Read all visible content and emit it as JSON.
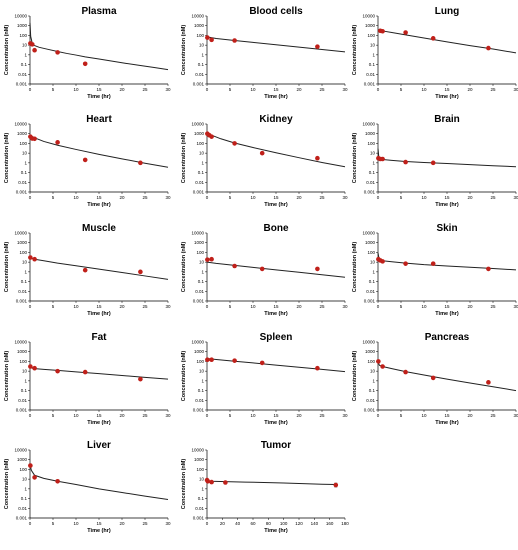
{
  "figure": {
    "colors": {
      "axis": "#000000",
      "model_line": "#222222",
      "observed": "#c0201a",
      "error_bar": "#888888"
    }
  },
  "chart_data": [
    {
      "type": "line",
      "title": "Plasma",
      "xlabel": "Time (hr)",
      "ylabel": "Concentration (nM)",
      "xlim": [
        0,
        30
      ],
      "ylim": [
        0.001,
        10000
      ],
      "ylog": true,
      "xticks": [
        "0",
        "5",
        "10",
        "15",
        "20",
        "25",
        "30"
      ],
      "yticks": [
        "0.001",
        "0.01",
        "0.1",
        "1",
        "10",
        "100",
        "1000",
        "10000"
      ],
      "model": {
        "x": [
          0,
          0.15,
          0.5,
          1,
          2,
          4,
          6,
          8,
          10,
          12,
          15,
          18,
          21,
          24,
          27,
          30
        ],
        "y": [
          2000,
          80,
          15,
          9,
          6,
          3.6,
          2.2,
          1.4,
          0.95,
          0.62,
          0.37,
          0.22,
          0.13,
          0.08,
          0.05,
          0.03
        ]
      },
      "observed": {
        "x": [
          0.08,
          0.5,
          1,
          6,
          12
        ],
        "y": [
          15,
          12,
          3,
          1.8,
          0.12
        ]
      }
    },
    {
      "type": "line",
      "title": "Blood cells",
      "xlabel": "Time (hr)",
      "ylabel": "Concentration (nM)",
      "xlim": [
        0,
        30
      ],
      "ylim": [
        0.001,
        10000
      ],
      "ylog": true,
      "xticks": [
        "0",
        "5",
        "10",
        "15",
        "20",
        "25",
        "30"
      ],
      "yticks": [
        "0.001",
        "0.01",
        "0.1",
        "1",
        "10",
        "100",
        "1000",
        "10000"
      ],
      "model": {
        "x": [
          0,
          2,
          6,
          10,
          15,
          20,
          25,
          30
        ],
        "y": [
          70,
          48,
          30,
          19,
          11,
          6.3,
          3.6,
          2
        ]
      },
      "observed": {
        "x": [
          0.08,
          1,
          6,
          24
        ],
        "y": [
          60,
          35,
          30,
          7
        ]
      }
    },
    {
      "type": "line",
      "title": "Lung",
      "xlabel": "Time (hr)",
      "ylabel": "Concentration (nM)",
      "xlim": [
        0,
        30
      ],
      "ylim": [
        0.001,
        10000
      ],
      "ylog": true,
      "xticks": [
        "0",
        "5",
        "10",
        "15",
        "20",
        "25",
        "30"
      ],
      "yticks": [
        "0.001",
        "0.01",
        "0.1",
        "1",
        "10",
        "100",
        "1000",
        "10000"
      ],
      "model": {
        "x": [
          0,
          1,
          3,
          6,
          10,
          15,
          20,
          25,
          30
        ],
        "y": [
          350,
          290,
          200,
          115,
          55,
          22,
          9,
          4,
          1.6
        ]
      },
      "observed": {
        "x": [
          0.5,
          1,
          6,
          12,
          24
        ],
        "y": [
          300,
          270,
          200,
          50,
          5
        ]
      }
    },
    {
      "type": "line",
      "title": "Heart",
      "xlabel": "Time (hr)",
      "ylabel": "Concentration (nM)",
      "xlim": [
        0,
        30
      ],
      "ylim": [
        0.001,
        10000
      ],
      "ylog": true,
      "xticks": [
        "0",
        "5",
        "10",
        "15",
        "20",
        "25",
        "30"
      ],
      "yticks": [
        "0.001",
        "0.01",
        "0.1",
        "1",
        "10",
        "100",
        "1000",
        "10000"
      ],
      "model": {
        "x": [
          0,
          1,
          3,
          6,
          10,
          15,
          20,
          25,
          30
        ],
        "y": [
          700,
          380,
          160,
          65,
          24,
          7.5,
          2.6,
          0.9,
          0.35
        ]
      },
      "observed": {
        "x": [
          0.08,
          0.5,
          1,
          6,
          12,
          24
        ],
        "y": [
          500,
          320,
          300,
          130,
          2,
          1
        ]
      }
    },
    {
      "type": "line",
      "title": "Kidney",
      "xlabel": "Time (hr)",
      "ylabel": "Concentration (nM)",
      "xlim": [
        0,
        30
      ],
      "ylim": [
        0.001,
        10000
      ],
      "ylog": true,
      "xticks": [
        "0",
        "5",
        "10",
        "15",
        "20",
        "25",
        "30"
      ],
      "yticks": [
        "0.001",
        "0.01",
        "0.1",
        "1",
        "10",
        "100",
        "1000",
        "10000"
      ],
      "model": {
        "x": [
          0,
          1,
          3,
          6,
          10,
          15,
          20,
          25,
          30
        ],
        "y": [
          1200,
          700,
          300,
          110,
          38,
          11,
          3.4,
          1.1,
          0.4
        ]
      },
      "observed": {
        "x": [
          0.08,
          0.5,
          1,
          6,
          12,
          24
        ],
        "y": [
          1000,
          700,
          500,
          100,
          10,
          3
        ]
      }
    },
    {
      "type": "line",
      "title": "Brain",
      "xlabel": "Time (hr)",
      "ylabel": "Concentration (nM)",
      "xlim": [
        0,
        30
      ],
      "ylim": [
        0.001,
        10000
      ],
      "ylog": true,
      "xticks": [
        "0",
        "5",
        "10",
        "15",
        "20",
        "25",
        "30"
      ],
      "yticks": [
        "0.001",
        "0.01",
        "0.1",
        "1",
        "10",
        "100",
        "1000",
        "10000"
      ],
      "model": {
        "x": [
          0,
          0.2,
          0.5,
          1,
          3,
          6,
          10,
          15,
          20,
          25,
          30
        ],
        "y": [
          30,
          3,
          2.4,
          2.2,
          1.8,
          1.4,
          1.1,
          0.85,
          0.65,
          0.5,
          0.4
        ]
      },
      "observed": {
        "x": [
          0.08,
          0.5,
          1,
          6,
          12
        ],
        "y": [
          3,
          2.5,
          2.5,
          1.2,
          1
        ]
      }
    },
    {
      "type": "line",
      "title": "Muscle",
      "xlabel": "Time (hr)",
      "ylabel": "Concentration (nM)",
      "xlim": [
        0,
        30
      ],
      "ylim": [
        0.001,
        10000
      ],
      "ylog": true,
      "xticks": [
        "0",
        "5",
        "10",
        "15",
        "20",
        "25",
        "30"
      ],
      "yticks": [
        "0.001",
        "0.01",
        "0.1",
        "1",
        "10",
        "100",
        "1000",
        "10000"
      ],
      "model": {
        "x": [
          0,
          1,
          3,
          6,
          10,
          15,
          20,
          25,
          30
        ],
        "y": [
          30,
          20,
          14,
          8,
          4.2,
          1.9,
          0.85,
          0.38,
          0.17
        ]
      },
      "observed": {
        "x": [
          0.08,
          1,
          12,
          24
        ],
        "y": [
          30,
          20,
          1.5,
          1
        ]
      }
    },
    {
      "type": "line",
      "title": "Bone",
      "xlabel": "Time (hr)",
      "ylabel": "Concentration (nM)",
      "xlim": [
        0,
        30
      ],
      "ylim": [
        0.001,
        10000
      ],
      "ylog": true,
      "xticks": [
        "0",
        "5",
        "10",
        "15",
        "20",
        "25",
        "30"
      ],
      "yticks": [
        "0.001",
        "0.01",
        "0.1",
        "1",
        "10",
        "100",
        "1000",
        "10000"
      ],
      "model": {
        "x": [
          0,
          2,
          6,
          10,
          15,
          20,
          25,
          30
        ],
        "y": [
          10,
          7.5,
          4.7,
          2.9,
          1.6,
          0.9,
          0.5,
          0.28
        ]
      },
      "observed": {
        "x": [
          0.08,
          1,
          6,
          12,
          24
        ],
        "y": [
          18,
          20,
          4,
          2,
          2
        ]
      }
    },
    {
      "type": "line",
      "title": "Skin",
      "xlabel": "Time (hr)",
      "ylabel": "Concentration (nM)",
      "xlim": [
        0,
        30
      ],
      "ylim": [
        0.001,
        10000
      ],
      "ylog": true,
      "xticks": [
        "0",
        "5",
        "10",
        "15",
        "20",
        "25",
        "30"
      ],
      "yticks": [
        "0.001",
        "0.01",
        "0.1",
        "1",
        "10",
        "100",
        "1000",
        "10000"
      ],
      "model": {
        "x": [
          0,
          0.15,
          0.5,
          1,
          3,
          6,
          10,
          15,
          20,
          25,
          30
        ],
        "y": [
          90,
          35,
          18,
          14,
          11,
          8,
          5.5,
          4,
          3,
          2.2,
          1.6
        ]
      },
      "observed": {
        "x": [
          0.08,
          0.5,
          1,
          6,
          12,
          24
        ],
        "y": [
          20,
          15,
          12,
          7,
          7,
          2
        ]
      }
    },
    {
      "type": "line",
      "title": "Fat",
      "xlabel": "Time (hr)",
      "ylabel": "Concentration (nM)",
      "xlim": [
        0,
        30
      ],
      "ylim": [
        0.001,
        10000
      ],
      "ylog": true,
      "xticks": [
        "0",
        "5",
        "10",
        "15",
        "20",
        "25",
        "30"
      ],
      "yticks": [
        "0.001",
        "0.01",
        "0.1",
        "1",
        "10",
        "100",
        "1000",
        "10000"
      ],
      "model": {
        "x": [
          0,
          0.2,
          1,
          3,
          6,
          10,
          15,
          20,
          25,
          30
        ],
        "y": [
          40,
          22,
          18,
          15,
          12,
          8.5,
          5.5,
          3.6,
          2.3,
          1.5
        ]
      },
      "observed": {
        "x": [
          0.08,
          1,
          6,
          12,
          24
        ],
        "y": [
          30,
          20,
          10,
          8,
          1.5
        ]
      }
    },
    {
      "type": "line",
      "title": "Spleen",
      "xlabel": "Time (hr)",
      "ylabel": "Concentration (nM)",
      "xlim": [
        0,
        30
      ],
      "ylim": [
        0.001,
        10000
      ],
      "ylog": true,
      "xticks": [
        "0",
        "5",
        "10",
        "15",
        "20",
        "25",
        "30"
      ],
      "yticks": [
        "0.001",
        "0.01",
        "0.1",
        "1",
        "10",
        "100",
        "1000",
        "10000"
      ],
      "model": {
        "x": [
          0,
          2,
          6,
          10,
          15,
          20,
          25,
          30
        ],
        "y": [
          200,
          160,
          105,
          70,
          42,
          25,
          15,
          9
        ]
      },
      "observed": {
        "x": [
          0.08,
          1,
          6,
          12,
          24
        ],
        "y": [
          150,
          150,
          120,
          70,
          20
        ]
      }
    },
    {
      "type": "line",
      "title": "Pancreas",
      "xlabel": "Time (hr)",
      "ylabel": "Concentration (nM)",
      "xlim": [
        0,
        30
      ],
      "ylim": [
        0.001,
        10000
      ],
      "ylog": true,
      "xticks": [
        "0",
        "5",
        "10",
        "15",
        "20",
        "25",
        "30"
      ],
      "yticks": [
        "0.001",
        "0.01",
        "0.1",
        "1",
        "10",
        "100",
        "1000",
        "10000"
      ],
      "model": {
        "x": [
          0,
          0.3,
          1,
          3,
          6,
          10,
          15,
          20,
          25,
          30
        ],
        "y": [
          100,
          40,
          30,
          18,
          9,
          4,
          1.5,
          0.6,
          0.25,
          0.1
        ]
      },
      "observed": {
        "x": [
          0.08,
          1,
          6,
          12,
          24
        ],
        "y": [
          100,
          30,
          8,
          2,
          0.7
        ]
      }
    },
    {
      "type": "line",
      "title": "Liver",
      "xlabel": "Time (hr)",
      "ylabel": "Concentration (nM)",
      "xlim": [
        0,
        30
      ],
      "ylim": [
        0.001,
        10000
      ],
      "ylog": true,
      "xticks": [
        "0",
        "5",
        "10",
        "15",
        "20",
        "25",
        "30"
      ],
      "yticks": [
        "0.001",
        "0.01",
        "0.1",
        "1",
        "10",
        "100",
        "1000",
        "10000"
      ],
      "model": {
        "x": [
          0,
          0.3,
          1,
          3,
          6,
          10,
          15,
          20,
          25,
          30
        ],
        "y": [
          300,
          80,
          25,
          12,
          6,
          2.8,
          1,
          0.42,
          0.18,
          0.08
        ]
      },
      "observed": {
        "x": [
          0.08,
          1,
          6
        ],
        "y": [
          250,
          15,
          6
        ]
      }
    },
    {
      "type": "line",
      "title": "Tumor",
      "xlabel": "Time (hr)",
      "ylabel": "Concentration (nM)",
      "xlim": [
        0,
        180
      ],
      "ylim": [
        0.001,
        10000
      ],
      "ylog": true,
      "xticks": [
        "0",
        "20",
        "40",
        "60",
        "80",
        "100",
        "120",
        "140",
        "160",
        "180"
      ],
      "yticks": [
        "0.001",
        "0.01",
        "0.1",
        "1",
        "10",
        "100",
        "1000",
        "10000"
      ],
      "model": {
        "x": [
          0,
          1,
          5,
          24,
          50,
          100,
          150,
          168
        ],
        "y": [
          9,
          7,
          6,
          5.5,
          5,
          4,
          3,
          2.8
        ]
      },
      "observed": {
        "x": [
          0.08,
          1,
          6,
          24,
          168
        ],
        "y": [
          8,
          6,
          5,
          4.5,
          2.5
        ]
      },
      "errors": [
        {
          "index": 4,
          "low": 1.5,
          "high": 4
        }
      ]
    }
  ]
}
